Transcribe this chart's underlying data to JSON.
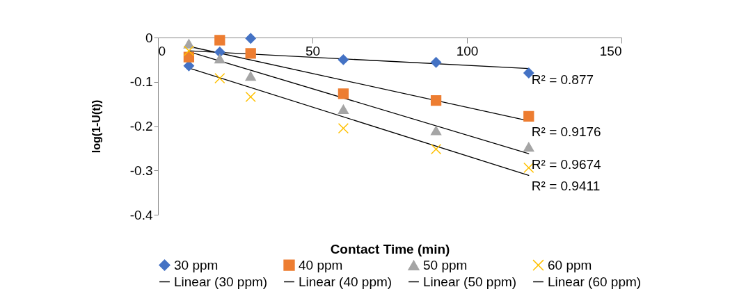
{
  "chart_data": {
    "type": "scatter",
    "xlabel": "Contact Time (min)",
    "ylabel": "log(1-U(t))",
    "xlim": [
      0,
      150
    ],
    "xticks": [
      0,
      50,
      100,
      150
    ],
    "ylim": [
      -0.4,
      0
    ],
    "yticks": [
      0,
      -0.1,
      -0.2,
      -0.3,
      -0.4
    ],
    "grid": false,
    "legend": "bottom",
    "series": [
      {
        "name": "30 ppm",
        "color": "#4472c4",
        "marker": "diamond",
        "x": [
          10,
          20,
          30,
          60,
          90,
          120
        ],
        "values": [
          -0.064,
          -0.033,
          -0.002,
          -0.05,
          -0.056,
          -0.08
        ]
      },
      {
        "name": "40 ppm",
        "color": "#ed7d31",
        "marker": "square",
        "x": [
          10,
          20,
          30,
          60,
          90,
          120
        ],
        "values": [
          -0.044,
          -0.006,
          -0.036,
          -0.127,
          -0.142,
          -0.178
        ]
      },
      {
        "name": "50 ppm",
        "color": "#a5a5a5",
        "marker": "triangle",
        "x": [
          10,
          20,
          30,
          60,
          90,
          120
        ],
        "values": [
          -0.014,
          -0.048,
          -0.087,
          -0.162,
          -0.21,
          -0.247
        ]
      },
      {
        "name": "60 ppm",
        "color": "#ffc000",
        "marker": "cross",
        "x": [
          10,
          20,
          30,
          60,
          90,
          120
        ],
        "values": [
          -0.03,
          -0.092,
          -0.134,
          -0.205,
          -0.252,
          -0.294
        ]
      },
      {
        "name": "Linear (30 ppm)",
        "type": "line",
        "color": "#000000",
        "marker": "none",
        "x": [
          10,
          120
        ],
        "values": [
          -0.03,
          -0.07
        ]
      },
      {
        "name": "Linear (40 ppm)",
        "type": "line",
        "color": "#000000",
        "marker": "none",
        "x": [
          10,
          120
        ],
        "values": [
          -0.02,
          -0.188
        ]
      },
      {
        "name": "Linear (50 ppm)",
        "type": "line",
        "color": "#000000",
        "marker": "none",
        "x": [
          10,
          120
        ],
        "values": [
          -0.032,
          -0.262
        ]
      },
      {
        "name": "Linear (60 ppm)",
        "type": "line",
        "color": "#000000",
        "marker": "none",
        "x": [
          10,
          120
        ],
        "values": [
          -0.069,
          -0.311
        ]
      }
    ],
    "annotations": [
      "R² = 0.877",
      "R² = 0.9176",
      "R² = 0.9674",
      "R² = 0.9411"
    ]
  }
}
